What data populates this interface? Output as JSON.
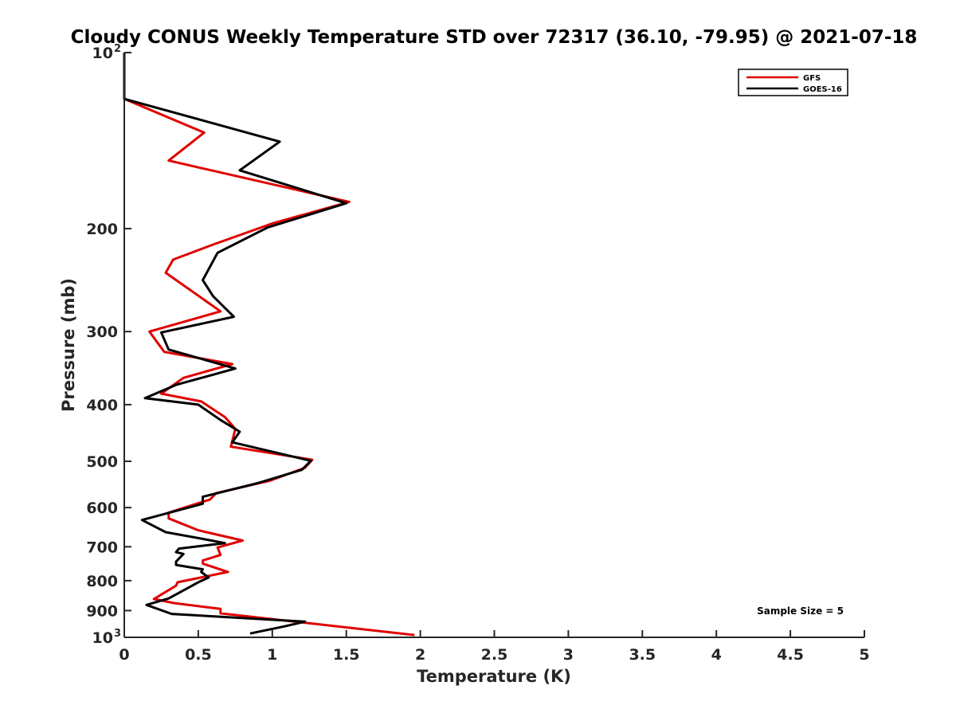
{
  "chart_data": {
    "type": "line",
    "title": "Cloudy CONUS Weekly Temperature STD over 72317 (36.10, -79.95) @ 2021-07-18",
    "xlabel": "Temperature (K)",
    "ylabel": "Pressure (mb)",
    "xlim": [
      0,
      5
    ],
    "ylim": [
      100,
      1000
    ],
    "y_scale": "log",
    "y_reversed": true,
    "x_ticks": [
      "0",
      "0.5",
      "1",
      "1.5",
      "2",
      "2.5",
      "3",
      "3.5",
      "4",
      "4.5",
      "5"
    ],
    "y_ticks": [
      {
        "value": 100,
        "label": "10",
        "exp": "2"
      },
      {
        "value": 200,
        "label": "200"
      },
      {
        "value": 300,
        "label": "300"
      },
      {
        "value": 400,
        "label": "400"
      },
      {
        "value": 500,
        "label": "500"
      },
      {
        "value": 600,
        "label": "600"
      },
      {
        "value": 700,
        "label": "700"
      },
      {
        "value": 800,
        "label": "800"
      },
      {
        "value": 900,
        "label": "900"
      },
      {
        "value": 1000,
        "label": "10",
        "exp": "3"
      }
    ],
    "grid": false,
    "legend_position": "top-right",
    "annotation": "Sample Size = 5",
    "series": [
      {
        "name": "GFS",
        "color": "#e00000",
        "points": [
          [
            0,
            100
          ],
          [
            0,
            120
          ],
          [
            0.54,
            137
          ],
          [
            0.3,
            153
          ],
          [
            1.52,
            180
          ],
          [
            1.0,
            196
          ],
          [
            0.6,
            213
          ],
          [
            0.33,
            226
          ],
          [
            0.28,
            238
          ],
          [
            0.65,
            277
          ],
          [
            0.17,
            300
          ],
          [
            0.27,
            325
          ],
          [
            0.73,
            341
          ],
          [
            0.4,
            360
          ],
          [
            0.25,
            383
          ],
          [
            0.52,
            395
          ],
          [
            0.68,
            420
          ],
          [
            0.75,
            440
          ],
          [
            0.72,
            472
          ],
          [
            1.27,
            497
          ],
          [
            1.22,
            513
          ],
          [
            0.98,
            540
          ],
          [
            0.62,
            567
          ],
          [
            0.58,
            581
          ],
          [
            0.3,
            612
          ],
          [
            0.3,
            626
          ],
          [
            0.5,
            656
          ],
          [
            0.8,
            683
          ],
          [
            0.63,
            702
          ],
          [
            0.65,
            723
          ],
          [
            0.53,
            739
          ],
          [
            0.53,
            748
          ],
          [
            0.7,
            773
          ],
          [
            0.36,
            805
          ],
          [
            0.35,
            816
          ],
          [
            0.2,
            860
          ],
          [
            0.34,
            874
          ],
          [
            0.65,
            894
          ],
          [
            0.65,
            910
          ],
          [
            1.96,
            991
          ]
        ]
      },
      {
        "name": "GOES-16",
        "color": "#000000",
        "points": [
          [
            0,
            100
          ],
          [
            0,
            120
          ],
          [
            1.05,
            142
          ],
          [
            0.78,
            159
          ],
          [
            1.5,
            181
          ],
          [
            0.97,
            199
          ],
          [
            0.63,
            220
          ],
          [
            0.53,
            245
          ],
          [
            0.6,
            261
          ],
          [
            0.74,
            283
          ],
          [
            0.25,
            301
          ],
          [
            0.3,
            322
          ],
          [
            0.75,
            347
          ],
          [
            0.35,
            370
          ],
          [
            0.14,
            390
          ],
          [
            0.5,
            400
          ],
          [
            0.65,
            425
          ],
          [
            0.78,
            445
          ],
          [
            0.73,
            464
          ],
          [
            1.26,
            499
          ],
          [
            1.2,
            517
          ],
          [
            0.9,
            545
          ],
          [
            0.53,
            575
          ],
          [
            0.53,
            591
          ],
          [
            0.12,
            630
          ],
          [
            0.28,
            661
          ],
          [
            0.55,
            680
          ],
          [
            0.68,
            690
          ],
          [
            0.37,
            705
          ],
          [
            0.35,
            715
          ],
          [
            0.4,
            720
          ],
          [
            0.35,
            742
          ],
          [
            0.35,
            752
          ],
          [
            0.53,
            765
          ],
          [
            0.52,
            773
          ],
          [
            0.57,
            790
          ],
          [
            0.5,
            805
          ],
          [
            0.3,
            858
          ],
          [
            0.15,
            880
          ],
          [
            0.32,
            912
          ],
          [
            1.22,
            940
          ],
          [
            1.08,
            958
          ],
          [
            0.85,
            985
          ]
        ]
      }
    ]
  }
}
